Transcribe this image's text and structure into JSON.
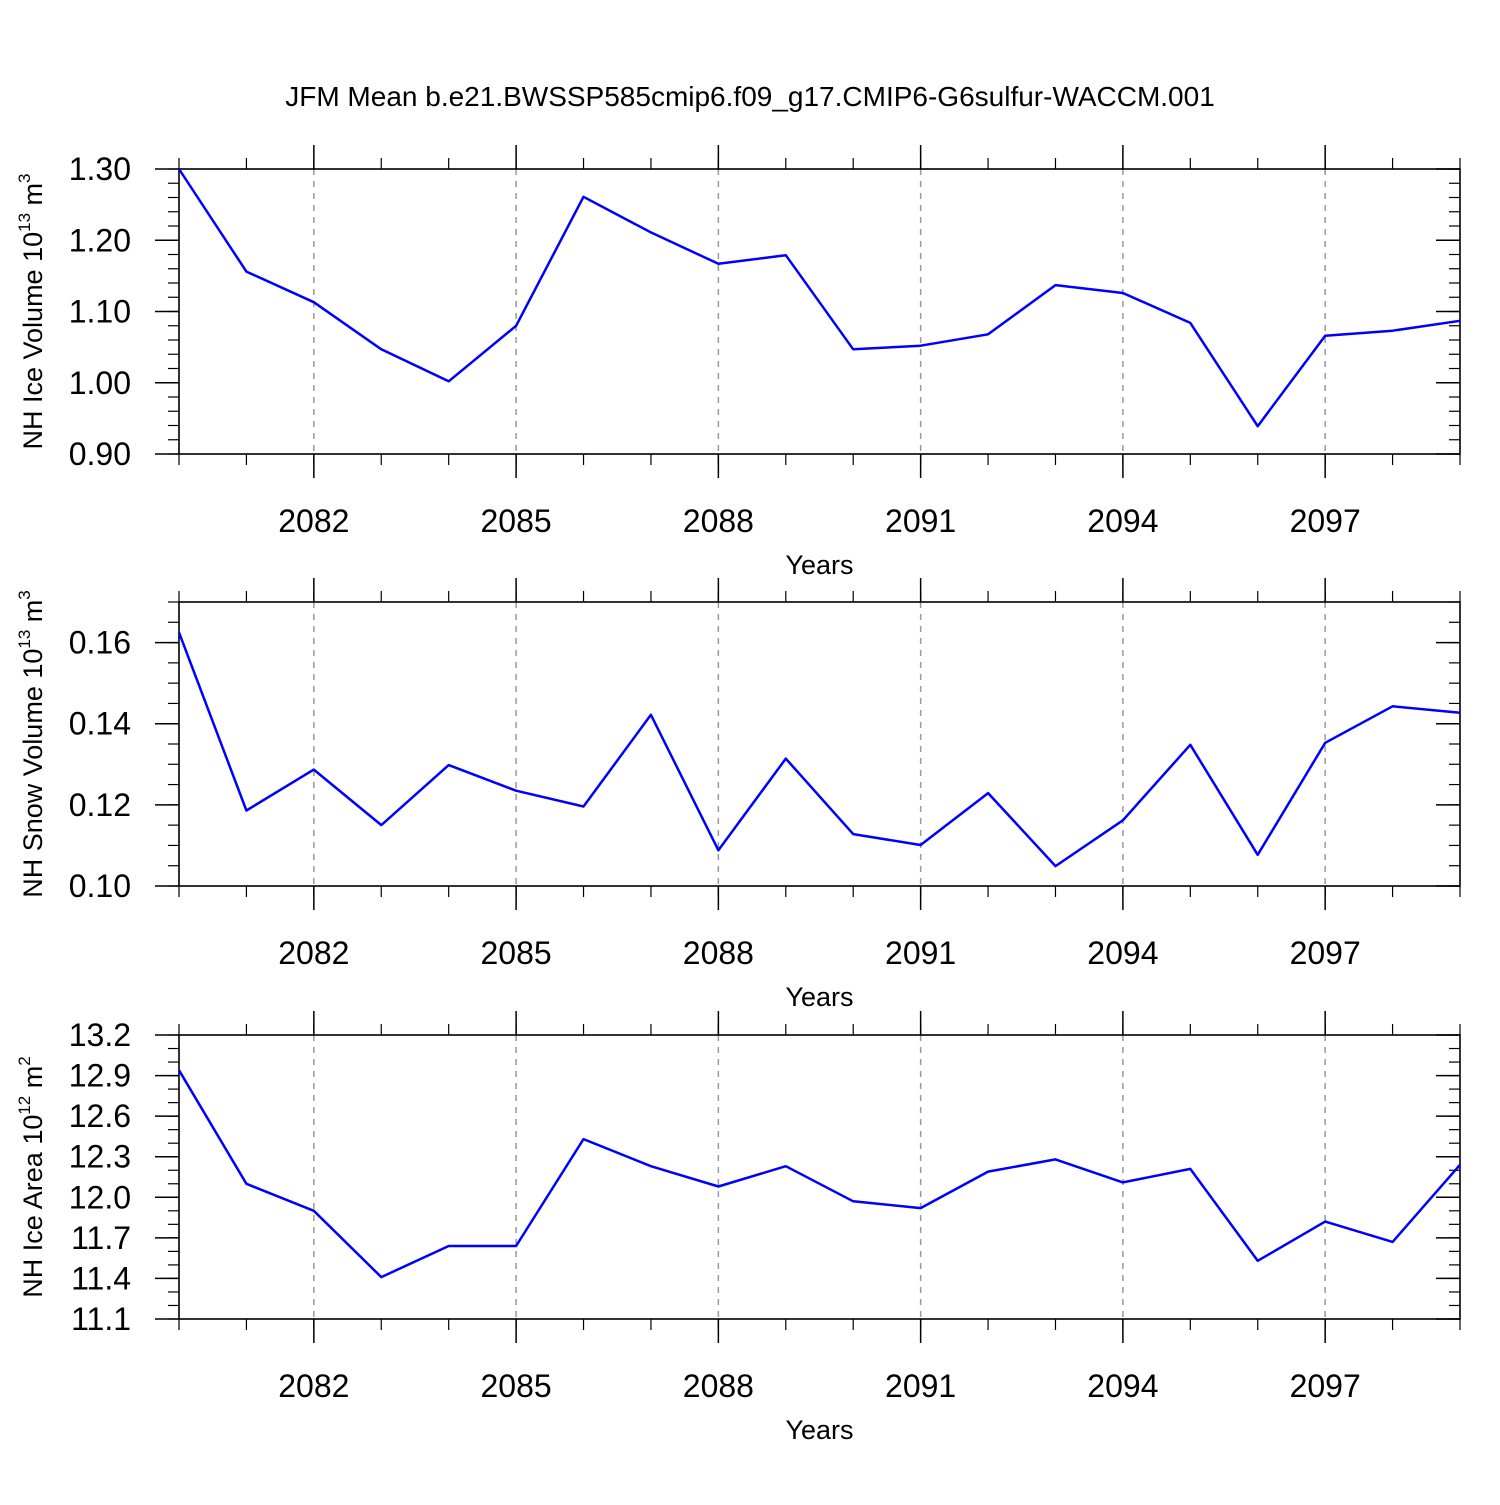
{
  "figure": {
    "title": "JFM Mean b.e21.BWSSP585cmip6.f09_g17.CMIP6-G6sulfur-WACCM.001"
  },
  "colors": {
    "line": "#0000ff",
    "axis": "#000000",
    "grid": "#999999",
    "background": "#ffffff"
  },
  "chart_data": [
    {
      "type": "line",
      "name": "nh-ice-volume",
      "xlabel": "Years",
      "ylabel_parts": {
        "text": "NH Ice Volume 10",
        "sup": "13",
        "unit": " m",
        "unit_sup": "3"
      },
      "xlim": [
        2080,
        2099
      ],
      "ylim": [
        0.9,
        1.3
      ],
      "xticks": [
        "2082",
        "2085",
        "2088",
        "2091",
        "2094",
        "2097"
      ],
      "yticks": [
        "0.90",
        "1.00",
        "1.10",
        "1.20",
        "1.30"
      ],
      "x_minor_step": 1,
      "y_minor_step": 0.02,
      "grid": "vertical-dashed",
      "series": [
        {
          "name": "NH Ice Volume",
          "x": [
            2080,
            2081,
            2082,
            2083,
            2084,
            2085,
            2086,
            2087,
            2088,
            2089,
            2090,
            2091,
            2092,
            2093,
            2094,
            2095,
            2096,
            2097,
            2098,
            2099
          ],
          "values": [
            1.3,
            1.156,
            1.113,
            1.047,
            1.002,
            1.08,
            1.261,
            1.211,
            1.167,
            1.179,
            1.047,
            1.052,
            1.068,
            1.137,
            1.126,
            1.084,
            0.939,
            1.066,
            1.073,
            1.087
          ]
        }
      ]
    },
    {
      "type": "line",
      "name": "nh-snow-volume",
      "xlabel": "Years",
      "ylabel_parts": {
        "text": "NH Snow Volume 10",
        "sup": "13",
        "unit": " m",
        "unit_sup": "3"
      },
      "xlim": [
        2080,
        2099
      ],
      "ylim": [
        0.1,
        0.17
      ],
      "xticks": [
        "2082",
        "2085",
        "2088",
        "2091",
        "2094",
        "2097"
      ],
      "yticks": [
        "0.10",
        "0.12",
        "0.14",
        "0.16"
      ],
      "x_minor_step": 1,
      "y_minor_step": 0.005,
      "grid": "vertical-dashed",
      "series": [
        {
          "name": "NH Snow Volume",
          "x": [
            2080,
            2081,
            2082,
            2083,
            2084,
            2085,
            2086,
            2087,
            2088,
            2089,
            2090,
            2091,
            2092,
            2093,
            2094,
            2095,
            2096,
            2097,
            2098,
            2099
          ],
          "values": [
            0.1625,
            0.1186,
            0.1287,
            0.115,
            0.1298,
            0.1235,
            0.1196,
            0.1422,
            0.1088,
            0.1314,
            0.1128,
            0.1101,
            0.1229,
            0.1049,
            0.1162,
            0.1348,
            0.1077,
            0.1353,
            0.1443,
            0.1427
          ]
        }
      ]
    },
    {
      "type": "line",
      "name": "nh-ice-area",
      "xlabel": "Years",
      "ylabel_parts": {
        "text": "NH Ice Area 10",
        "sup": "12",
        "unit": " m",
        "unit_sup": "2"
      },
      "xlim": [
        2080,
        2099
      ],
      "ylim": [
        11.1,
        13.2
      ],
      "xticks": [
        "2082",
        "2085",
        "2088",
        "2091",
        "2094",
        "2097"
      ],
      "yticks": [
        "11.1",
        "11.4",
        "11.7",
        "12.0",
        "12.3",
        "12.6",
        "12.9",
        "13.2"
      ],
      "x_minor_step": 1,
      "y_minor_step": 0.1,
      "grid": "vertical-dashed",
      "series": [
        {
          "name": "NH Ice Area",
          "x": [
            2080,
            2081,
            2082,
            2083,
            2084,
            2085,
            2086,
            2087,
            2088,
            2089,
            2090,
            2091,
            2092,
            2093,
            2094,
            2095,
            2096,
            2097,
            2098,
            2099
          ],
          "values": [
            12.94,
            12.1,
            11.9,
            11.41,
            11.64,
            11.64,
            12.43,
            12.23,
            12.08,
            12.23,
            11.97,
            11.92,
            12.19,
            12.28,
            12.11,
            12.21,
            11.53,
            11.82,
            11.67,
            12.24
          ]
        }
      ]
    }
  ]
}
